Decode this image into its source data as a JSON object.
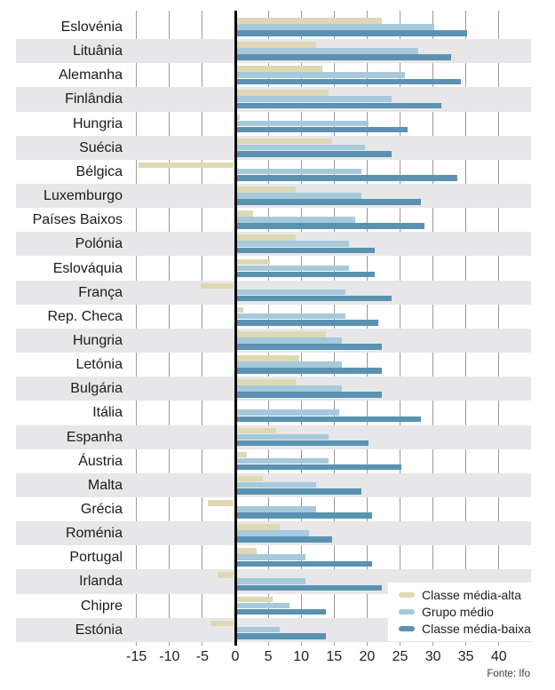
{
  "chart_data": {
    "type": "bar",
    "orientation": "horizontal",
    "title": "",
    "xlabel": "",
    "ylabel": "",
    "xlim": [
      -17.5,
      45
    ],
    "xticks": [
      -15,
      -10,
      -5,
      0,
      5,
      10,
      15,
      20,
      25,
      30,
      35,
      40
    ],
    "xtick_labels": [
      "-15",
      "-10",
      "-5",
      "0",
      "5",
      "10",
      "15",
      "20",
      "25",
      "30",
      "35",
      "40"
    ],
    "grid": "vertical gridlines visible in white rows, hidden under alternating gray stripes",
    "legend_position": "bottom-right overlay box",
    "categories": [
      "Eslovénia",
      "Lituânia",
      "Alemanha",
      "Finlândia",
      "Hungria",
      "Suécia",
      "Bélgica",
      "Luxemburgo",
      "Países Baixos",
      "Polónia",
      "Eslováquia",
      "França",
      "Rep. Checa",
      "Hungria",
      "Letónia",
      "Bulgária",
      "Itália",
      "Espanha",
      "Áustria",
      "Malta",
      "Grécia",
      "Roménia",
      "Portugal",
      "Irlanda",
      "Chipre",
      "Estónia"
    ],
    "series": [
      {
        "name": "Classe média-alta",
        "color": "#ded9b4",
        "values": [
          22,
          12,
          13,
          14,
          0.5,
          14.5,
          -14.5,
          9,
          2.5,
          9,
          5,
          -5,
          1,
          13.5,
          9.5,
          9,
          0,
          6,
          1.5,
          4,
          -4,
          6.5,
          3,
          -2.5,
          5.5,
          -3.5
        ]
      },
      {
        "name": "Grupo médio",
        "color": "#a6c9dc",
        "values": [
          30,
          27.5,
          25.5,
          23.5,
          20,
          19.5,
          19,
          19,
          18,
          17,
          17,
          16.5,
          16.5,
          16,
          16,
          16,
          15.5,
          14,
          14,
          12,
          12,
          11,
          10.5,
          10.5,
          8,
          6.5
        ]
      },
      {
        "name": "Classe média-baixa",
        "color": "#5b92b1",
        "values": [
          35,
          32.5,
          34,
          31,
          26,
          23.5,
          33.5,
          28,
          28.5,
          21,
          21,
          23.5,
          21.5,
          22,
          22,
          22,
          28,
          20,
          25,
          19,
          20.5,
          14.5,
          20.5,
          22,
          13.5,
          13.5
        ]
      }
    ],
    "source": "Fonte: Ifo"
  },
  "colors": {
    "background": "#ffffff",
    "row_stripe": "#e7e7e9",
    "gridline": "#9a9a9a",
    "zero_axis": "#000000",
    "label_text": "#1a1a1a",
    "series_alta": "#ded9b4",
    "series_medio": "#a6c9dc",
    "series_baixa": "#5b92b1"
  },
  "source_label": "Fonte: Ifo"
}
